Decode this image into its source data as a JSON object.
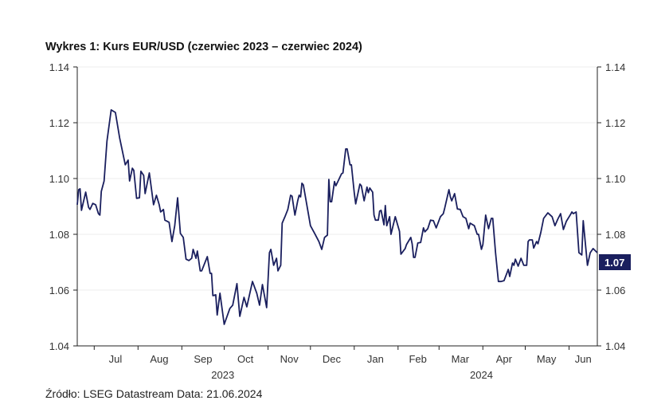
{
  "title": "Wykres 1: Kurs EUR/USD (czerwiec 2023 – czerwiec 2024)",
  "source": "Źródło: LSEG Datastream Data: 21.06.2024",
  "chart_data": {
    "type": "line",
    "title": "Wykres 1: Kurs EUR/USD (czerwiec 2023 – czerwiec 2024)",
    "xlabel": "",
    "ylabel": "",
    "xlim": [
      "2023-06-19",
      "2024-06-21"
    ],
    "ylim": [
      1.04,
      1.14
    ],
    "grid": true,
    "line_color": "#1a1f5e",
    "last_value_label": "1.07",
    "last_value_color": "#1a1f5e",
    "y_ticks": [
      "1.04",
      "1.06",
      "1.08",
      "1.10",
      "1.12",
      "1.14"
    ],
    "x_month_ticks": [
      {
        "label": "Jul",
        "date": "2023-07-16"
      },
      {
        "label": "Aug",
        "date": "2023-08-16"
      },
      {
        "label": "Sep",
        "date": "2023-09-16"
      },
      {
        "label": "Oct",
        "date": "2023-10-16"
      },
      {
        "label": "Nov",
        "date": "2023-11-16"
      },
      {
        "label": "Dec",
        "date": "2023-12-16"
      },
      {
        "label": "Jan",
        "date": "2024-01-16"
      },
      {
        "label": "Feb",
        "date": "2024-02-15"
      },
      {
        "label": "Mar",
        "date": "2024-03-16"
      },
      {
        "label": "Apr",
        "date": "2024-04-16"
      },
      {
        "label": "May",
        "date": "2024-05-16"
      },
      {
        "label": "Jun",
        "date": "2024-06-11"
      }
    ],
    "month_boundaries": [
      "2023-07-01",
      "2023-08-01",
      "2023-09-01",
      "2023-10-01",
      "2023-11-01",
      "2023-12-01",
      "2024-01-01",
      "2024-02-01",
      "2024-03-01",
      "2024-04-01",
      "2024-05-01",
      "2024-06-01"
    ],
    "x_year_labels": [
      {
        "label": "2023",
        "date": "2023-09-30"
      },
      {
        "label": "2024",
        "date": "2024-03-31"
      }
    ],
    "series": [
      {
        "points": [
          [
            "2023-06-19",
            1.0906
          ],
          [
            "2023-06-20",
            1.096
          ],
          [
            "2023-06-21",
            1.0963
          ],
          [
            "2023-06-22",
            1.0886
          ],
          [
            "2023-06-25",
            1.0951
          ],
          [
            "2023-06-27",
            1.0897
          ],
          [
            "2023-06-28",
            1.0889
          ],
          [
            "2023-06-30",
            1.0911
          ],
          [
            "2023-07-02",
            1.0906
          ],
          [
            "2023-07-04",
            1.0874
          ],
          [
            "2023-07-05",
            1.0869
          ],
          [
            "2023-07-06",
            1.0954
          ],
          [
            "2023-07-08",
            1.0991
          ],
          [
            "2023-07-10",
            1.1134
          ],
          [
            "2023-07-13",
            1.1246
          ],
          [
            "2023-07-16",
            1.1237
          ],
          [
            "2023-07-19",
            1.1146
          ],
          [
            "2023-07-23",
            1.1049
          ],
          [
            "2023-07-25",
            1.1066
          ],
          [
            "2023-07-26",
            1.0991
          ],
          [
            "2023-07-28",
            1.1037
          ],
          [
            "2023-07-29",
            1.1029
          ],
          [
            "2023-07-31",
            1.0929
          ],
          [
            "2023-08-02",
            1.0931
          ],
          [
            "2023-08-03",
            1.1026
          ],
          [
            "2023-08-05",
            1.1011
          ],
          [
            "2023-08-06",
            1.0946
          ],
          [
            "2023-08-09",
            1.102
          ],
          [
            "2023-08-12",
            1.0906
          ],
          [
            "2023-08-14",
            1.094
          ],
          [
            "2023-08-16",
            1.0906
          ],
          [
            "2023-08-17",
            1.088
          ],
          [
            "2023-08-19",
            1.0889
          ],
          [
            "2023-08-20",
            1.0851
          ],
          [
            "2023-08-23",
            1.0843
          ],
          [
            "2023-08-25",
            1.0774
          ],
          [
            "2023-08-27",
            1.0831
          ],
          [
            "2023-08-29",
            1.0931
          ],
          [
            "2023-08-31",
            1.0803
          ],
          [
            "2023-09-02",
            1.0789
          ],
          [
            "2023-09-04",
            1.0711
          ],
          [
            "2023-09-06",
            1.0706
          ],
          [
            "2023-09-08",
            1.0714
          ],
          [
            "2023-09-09",
            1.0746
          ],
          [
            "2023-09-11",
            1.0714
          ],
          [
            "2023-09-12",
            1.074
          ],
          [
            "2023-09-14",
            1.0669
          ],
          [
            "2023-09-15",
            1.0669
          ],
          [
            "2023-09-19",
            1.072
          ],
          [
            "2023-09-21",
            1.066
          ],
          [
            "2023-09-22",
            1.066
          ],
          [
            "2023-09-23",
            1.058
          ],
          [
            "2023-09-25",
            1.0583
          ],
          [
            "2023-09-26",
            1.0511
          ],
          [
            "2023-09-28",
            1.0589
          ],
          [
            "2023-10-01",
            1.0477
          ],
          [
            "2023-10-05",
            1.0534
          ],
          [
            "2023-10-07",
            1.0546
          ],
          [
            "2023-10-10",
            1.0623
          ],
          [
            "2023-10-12",
            1.0506
          ],
          [
            "2023-10-15",
            1.0574
          ],
          [
            "2023-10-17",
            1.054
          ],
          [
            "2023-10-21",
            1.0631
          ],
          [
            "2023-10-24",
            1.0589
          ],
          [
            "2023-10-26",
            1.0546
          ],
          [
            "2023-10-28",
            1.062
          ],
          [
            "2023-10-31",
            1.0537
          ],
          [
            "2023-11-02",
            1.0734
          ],
          [
            "2023-11-03",
            1.0746
          ],
          [
            "2023-11-05",
            1.0689
          ],
          [
            "2023-11-07",
            1.0714
          ],
          [
            "2023-11-08",
            1.0669
          ],
          [
            "2023-11-10",
            1.0689
          ],
          [
            "2023-11-11",
            1.084
          ],
          [
            "2023-11-13",
            1.0863
          ],
          [
            "2023-11-15",
            1.0889
          ],
          [
            "2023-11-17",
            1.094
          ],
          [
            "2023-11-18",
            1.0937
          ],
          [
            "2023-11-20",
            1.0869
          ],
          [
            "2023-11-22",
            1.092
          ],
          [
            "2023-11-23",
            1.094
          ],
          [
            "2023-11-24",
            1.0934
          ],
          [
            "2023-11-25",
            1.0983
          ],
          [
            "2023-11-26",
            1.0977
          ],
          [
            "2023-12-01",
            1.0831
          ],
          [
            "2023-12-04",
            1.0803
          ],
          [
            "2023-12-07",
            1.0774
          ],
          [
            "2023-12-09",
            1.0746
          ],
          [
            "2023-12-11",
            1.0789
          ],
          [
            "2023-12-13",
            1.0797
          ],
          [
            "2023-12-14",
            1.0997
          ],
          [
            "2023-12-15",
            1.0917
          ],
          [
            "2023-12-16",
            1.0917
          ],
          [
            "2023-12-18",
            1.0989
          ],
          [
            "2023-12-19",
            1.0974
          ],
          [
            "2023-12-23",
            1.1017
          ],
          [
            "2023-12-24",
            1.102
          ],
          [
            "2023-12-26",
            1.1106
          ],
          [
            "2023-12-27",
            1.1106
          ],
          [
            "2023-12-29",
            1.1049
          ],
          [
            "2023-12-30",
            1.1049
          ],
          [
            "2024-01-01",
            1.0949
          ],
          [
            "2024-01-02",
            1.0909
          ],
          [
            "2024-01-05",
            1.098
          ],
          [
            "2024-01-06",
            1.0974
          ],
          [
            "2024-01-08",
            1.092
          ],
          [
            "2024-01-10",
            1.0969
          ],
          [
            "2024-01-11",
            1.0949
          ],
          [
            "2024-01-12",
            1.0966
          ],
          [
            "2024-01-14",
            1.0951
          ],
          [
            "2024-01-15",
            1.0869
          ],
          [
            "2024-01-16",
            1.0851
          ],
          [
            "2024-01-18",
            1.0851
          ],
          [
            "2024-01-19",
            1.0883
          ],
          [
            "2024-01-20",
            1.0886
          ],
          [
            "2024-01-22",
            1.0834
          ],
          [
            "2024-01-23",
            1.0903
          ],
          [
            "2024-01-24",
            1.0831
          ],
          [
            "2024-01-26",
            1.0863
          ],
          [
            "2024-01-27",
            1.08
          ],
          [
            "2024-01-30",
            1.0863
          ],
          [
            "2024-02-02",
            1.0811
          ],
          [
            "2024-02-03",
            1.0729
          ],
          [
            "2024-02-06",
            1.0749
          ],
          [
            "2024-02-07",
            1.0763
          ],
          [
            "2024-02-10",
            1.0789
          ],
          [
            "2024-02-11",
            1.0766
          ],
          [
            "2024-02-12",
            1.0717
          ],
          [
            "2024-02-13",
            1.0717
          ],
          [
            "2024-02-15",
            1.0769
          ],
          [
            "2024-02-17",
            1.0771
          ],
          [
            "2024-02-19",
            1.0823
          ],
          [
            "2024-02-20",
            1.0809
          ],
          [
            "2024-02-22",
            1.082
          ],
          [
            "2024-02-24",
            1.0851
          ],
          [
            "2024-02-26",
            1.0849
          ],
          [
            "2024-02-28",
            1.0823
          ],
          [
            "2024-03-02",
            1.0863
          ],
          [
            "2024-03-04",
            1.0874
          ],
          [
            "2024-03-05",
            1.0894
          ],
          [
            "2024-03-08",
            1.096
          ],
          [
            "2024-03-09",
            1.0934
          ],
          [
            "2024-03-10",
            1.092
          ],
          [
            "2024-03-12",
            1.0946
          ],
          [
            "2024-03-14",
            1.0891
          ],
          [
            "2024-03-16",
            1.0889
          ],
          [
            "2024-03-18",
            1.0863
          ],
          [
            "2024-03-20",
            1.0857
          ],
          [
            "2024-03-22",
            1.082
          ],
          [
            "2024-03-23",
            1.084
          ],
          [
            "2024-03-26",
            1.0831
          ],
          [
            "2024-03-28",
            1.08
          ],
          [
            "2024-03-29",
            1.08
          ],
          [
            "2024-03-31",
            1.0746
          ],
          [
            "2024-04-01",
            1.0763
          ],
          [
            "2024-04-03",
            1.0869
          ],
          [
            "2024-04-05",
            1.082
          ],
          [
            "2024-04-07",
            1.0857
          ],
          [
            "2024-04-08",
            1.0857
          ],
          [
            "2024-04-10",
            1.0734
          ],
          [
            "2024-04-12",
            1.0631
          ],
          [
            "2024-04-14",
            1.0631
          ],
          [
            "2024-04-16",
            1.0634
          ],
          [
            "2024-04-19",
            1.0674
          ],
          [
            "2024-04-20",
            1.0649
          ],
          [
            "2024-04-22",
            1.0697
          ],
          [
            "2024-04-23",
            1.0689
          ],
          [
            "2024-04-24",
            1.0711
          ],
          [
            "2024-04-26",
            1.0686
          ],
          [
            "2024-04-28",
            1.0714
          ],
          [
            "2024-04-30",
            1.0689
          ],
          [
            "2024-05-02",
            1.0689
          ],
          [
            "2024-05-03",
            1.0774
          ],
          [
            "2024-05-04",
            1.078
          ],
          [
            "2024-05-06",
            1.078
          ],
          [
            "2024-05-07",
            1.0751
          ],
          [
            "2024-05-09",
            1.0774
          ],
          [
            "2024-05-10",
            1.0766
          ],
          [
            "2024-05-12",
            1.0806
          ],
          [
            "2024-05-14",
            1.0857
          ],
          [
            "2024-05-17",
            1.0877
          ],
          [
            "2024-05-20",
            1.0863
          ],
          [
            "2024-05-22",
            1.0831
          ],
          [
            "2024-05-24",
            1.0854
          ],
          [
            "2024-05-26",
            1.0874
          ],
          [
            "2024-05-28",
            1.0817
          ],
          [
            "2024-05-30",
            1.0846
          ],
          [
            "2024-06-02",
            1.0871
          ],
          [
            "2024-06-03",
            1.088
          ],
          [
            "2024-06-04",
            1.0874
          ],
          [
            "2024-06-06",
            1.088
          ],
          [
            "2024-06-08",
            1.0734
          ],
          [
            "2024-06-10",
            1.0726
          ],
          [
            "2024-06-11",
            1.0849
          ],
          [
            "2024-06-14",
            1.0689
          ],
          [
            "2024-06-16",
            1.0734
          ],
          [
            "2024-06-18",
            1.0749
          ],
          [
            "2024-06-21",
            1.0734
          ]
        ]
      }
    ]
  }
}
